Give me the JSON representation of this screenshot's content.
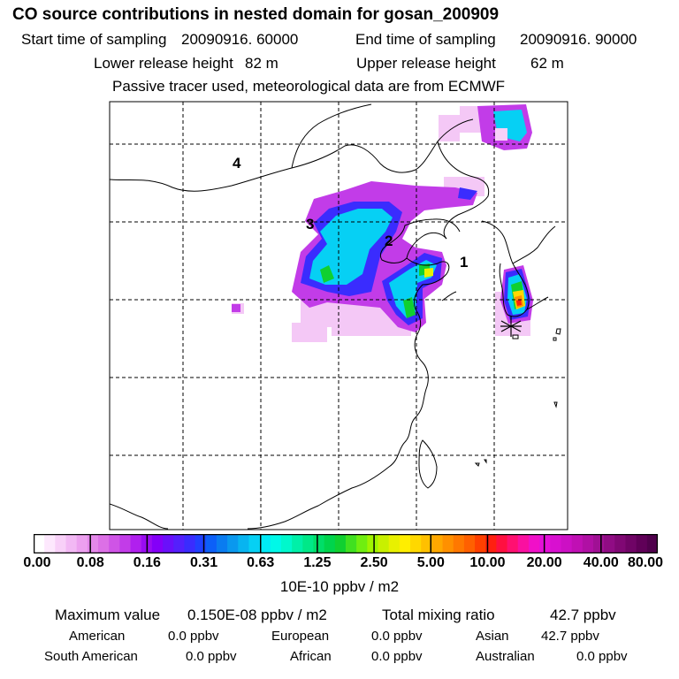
{
  "header": {
    "title": "CO  source contributions in nested domain for gosan_200909",
    "start_label": "Start time of sampling",
    "start_value": "20090916. 60000",
    "end_label": "End time of sampling",
    "end_value": "20090916. 90000",
    "lower_label": "Lower release height",
    "lower_value": "82 m",
    "upper_label": "Upper release height",
    "upper_value": "62 m",
    "note": "Passive tracer used, meteorological data are from ECMWF"
  },
  "map": {
    "region_labels": [
      "1",
      "2",
      "3",
      "4"
    ],
    "receptor_marker": "asterisk-marker"
  },
  "colorbar": {
    "tick_labels": [
      "0.00",
      "0.08",
      "0.16",
      "0.31",
      "0.63",
      "1.25",
      "2.50",
      "5.00",
      "10.00",
      "20.00",
      "40.00",
      "80.00"
    ],
    "unit": "10E-10 ppbv / m2",
    "colors": [
      "#ffffff",
      "#fde8fd",
      "#f8d0f8",
      "#f2b8f4",
      "#eca0ef",
      "#e488ea",
      "#dc70e6",
      "#cf54e6",
      "#c23ce8",
      "#b020ee",
      "#9a0cf2",
      "#8400f8",
      "#6a10fa",
      "#5420fc",
      "#3a2cfe",
      "#2040ff",
      "#0c60f8",
      "#0a7cf0",
      "#0a98ee",
      "#08b4f0",
      "#06d0f4",
      "#00eaf6",
      "#00f8e8",
      "#00f8cc",
      "#00f0a8",
      "#00e888",
      "#00de68",
      "#00d44c",
      "#10d030",
      "#40e020",
      "#70ee10",
      "#a0f400",
      "#c8f000",
      "#e8f000",
      "#ffee00",
      "#ffd800",
      "#ffc000",
      "#ffa800",
      "#ff9000",
      "#ff7800",
      "#ff6000",
      "#ff4000",
      "#ff2010",
      "#ff1040",
      "#ff1070",
      "#fa10a0",
      "#f010c8",
      "#e410d8",
      "#d810d0",
      "#cc10c4",
      "#c010b4",
      "#b010a4",
      "#a01094",
      "#900c84",
      "#800874",
      "#700466",
      "#600058",
      "#50004c"
    ]
  },
  "summary": {
    "max_label": "Maximum value",
    "max_value": "0.150E-08 ppbv / m2",
    "total_label": "Total mixing ratio",
    "total_value": "42.7 ppbv",
    "rows": [
      [
        {
          "label": "American",
          "value": "0.0 ppbv"
        },
        {
          "label": "European",
          "value": "0.0 ppbv"
        },
        {
          "label": "Asian",
          "value": "42.7 ppbv"
        }
      ],
      [
        {
          "label": "South American",
          "value": "0.0 ppbv"
        },
        {
          "label": "African",
          "value": "0.0 ppbv"
        },
        {
          "label": "Australian",
          "value": "0.0 ppbv"
        }
      ]
    ]
  }
}
